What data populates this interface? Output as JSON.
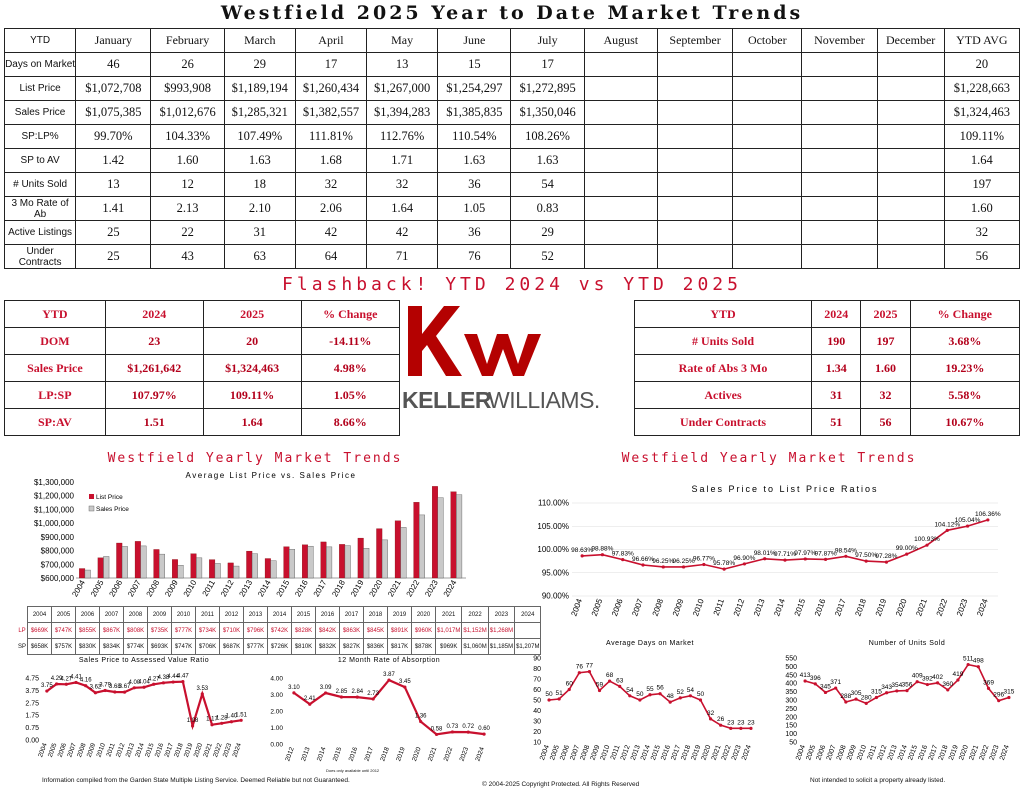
{
  "title": "Westfield 2025 Year to Date Market Trends",
  "main_table": {
    "headers": [
      "YTD",
      "January",
      "February",
      "March",
      "April",
      "May",
      "June",
      "July",
      "August",
      "September",
      "October",
      "November",
      "December",
      "YTD AVG"
    ],
    "rows": [
      [
        "Days on Market",
        "46",
        "26",
        "29",
        "17",
        "13",
        "15",
        "17",
        "",
        "",
        "",
        "",
        "",
        "20"
      ],
      [
        "List Price",
        "$1,072,708",
        "$993,908",
        "$1,189,194",
        "$1,260,434",
        "$1,267,000",
        "$1,254,297",
        "$1,272,895",
        "",
        "",
        "",
        "",
        "",
        "$1,228,663"
      ],
      [
        "Sales Price",
        "$1,075,385",
        "$1,012,676",
        "$1,285,321",
        "$1,382,557",
        "$1,394,283",
        "$1,385,835",
        "$1,350,046",
        "",
        "",
        "",
        "",
        "",
        "$1,324,463"
      ],
      [
        "SP:LP%",
        "99.70%",
        "104.33%",
        "107.49%",
        "111.81%",
        "112.76%",
        "110.54%",
        "108.26%",
        "",
        "",
        "",
        "",
        "",
        "109.11%"
      ],
      [
        "SP to AV",
        "1.42",
        "1.60",
        "1.63",
        "1.68",
        "1.71",
        "1.63",
        "1.63",
        "",
        "",
        "",
        "",
        "",
        "1.64"
      ],
      [
        "# Units Sold",
        "13",
        "12",
        "18",
        "32",
        "32",
        "36",
        "54",
        "",
        "",
        "",
        "",
        "",
        "197"
      ],
      [
        "3 Mo Rate of Ab",
        "1.41",
        "2.13",
        "2.10",
        "2.06",
        "1.64",
        "1.05",
        "0.83",
        "",
        "",
        "",
        "",
        "",
        "1.60"
      ],
      [
        "Active Listings",
        "25",
        "22",
        "31",
        "42",
        "42",
        "36",
        "29",
        "",
        "",
        "",
        "",
        "",
        "32"
      ],
      [
        "Under Contracts",
        "25",
        "43",
        "63",
        "64",
        "71",
        "76",
        "52",
        "",
        "",
        "",
        "",
        "",
        "56"
      ]
    ]
  },
  "flashback_title": "Flashback!  YTD 2024 vs YTD 2025",
  "flash_left": {
    "headers": [
      "YTD",
      "2024",
      "2025",
      "% Change"
    ],
    "rows": [
      [
        "DOM",
        "23",
        "20",
        "-14.11%"
      ],
      [
        "Sales Price",
        "$1,261,642",
        "$1,324,463",
        "4.98%"
      ],
      [
        "LP:SP",
        "107.97%",
        "109.11%",
        "1.05%"
      ],
      [
        "SP:AV",
        "1.51",
        "1.64",
        "8.66%"
      ]
    ]
  },
  "flash_right": {
    "headers": [
      "YTD",
      "2024",
      "2025",
      "% Change"
    ],
    "rows": [
      [
        "# Units Sold",
        "190",
        "197",
        "3.68%"
      ],
      [
        "Rate of Abs 3 Mo",
        "1.34",
        "1.60",
        "19.23%"
      ],
      [
        "Actives",
        "31",
        "32",
        "5.58%"
      ],
      [
        "Under Contracts",
        "51",
        "56",
        "10.67%"
      ]
    ]
  },
  "logo": {
    "mark": "kw",
    "wordmark_bold": "KELLER",
    "wordmark_light": "WILLIAMS.",
    "color": "#b40101"
  },
  "left_section_title": "Westfield Yearly Market Trends",
  "right_section_title": "Westfield Yearly Market Trends",
  "years": [
    "2004",
    "2005",
    "2006",
    "2007",
    "2008",
    "2009",
    "2010",
    "2011",
    "2012",
    "2013",
    "2014",
    "2015",
    "2016",
    "2017",
    "2018",
    "2019",
    "2020",
    "2021",
    "2022",
    "2023",
    "2024"
  ],
  "lp_row": [
    "$669K",
    "$747K",
    "$855K",
    "$867K",
    "$808K",
    "$735K",
    "$777K",
    "$734K",
    "$710K",
    "$796K",
    "$742K",
    "$828K",
    "$842K",
    "$863K",
    "$845K",
    "$891K",
    "$960K",
    "$1,017M",
    "$1,152M",
    "$1,268M",
    ""
  ],
  "sp_row": [
    "$658K",
    "$757K",
    "$830K",
    "$834K",
    "$774K",
    "$693K",
    "$747K",
    "$706K",
    "$687K",
    "$777K",
    "$726K",
    "$810K",
    "$832K",
    "$827K",
    "$836K",
    "$817K",
    "$878K",
    "$969K",
    "$1,060M",
    "$1,185M",
    "$1,207M"
  ],
  "lp_label": "LP",
  "sp_label": "SP",
  "note_only": "Does only available until 2012",
  "footer_left": "Information compiled from the Garden State Multiple Listing Service.  Deemed Reliable but not Guaranteed.",
  "footer_center": "© 2004-2025 Copyright Protected.  All Rights Reserved",
  "footer_right": "Not intended to solicit a property already listed.",
  "colors": {
    "red": "#c8102e",
    "gray": "#b9b9b9"
  },
  "chart_data": [
    {
      "type": "bar",
      "title": "Average List Price vs. Sales Price",
      "categories": [
        "2004",
        "2005",
        "2006",
        "2007",
        "2008",
        "2009",
        "2010",
        "2011",
        "2012",
        "2013",
        "2014",
        "2015",
        "2016",
        "2017",
        "2018",
        "2019",
        "2020",
        "2021",
        "2022",
        "2023",
        "2024"
      ],
      "series": [
        {
          "name": "List Price",
          "values": [
            669000,
            747000,
            855000,
            867000,
            808000,
            735000,
            777000,
            734000,
            710000,
            796000,
            742000,
            828000,
            842000,
            863000,
            845000,
            891000,
            960000,
            1017000,
            1152000,
            1268000,
            1228663
          ]
        },
        {
          "name": "Sales Price",
          "values": [
            658000,
            757000,
            830000,
            834000,
            774000,
            693000,
            747000,
            706000,
            687000,
            777000,
            726000,
            810000,
            832000,
            827000,
            836000,
            817000,
            878000,
            969000,
            1060000,
            1185000,
            1207000
          ]
        }
      ],
      "ylim": [
        600000,
        1300000
      ],
      "yticks": [
        "$600,000",
        "$700,000",
        "$800,000",
        "$900,000",
        "$1,000,000",
        "$1,100,000",
        "$1,200,000",
        "$1,300,000"
      ]
    },
    {
      "type": "line",
      "title": "Sales Price to List Price Ratios",
      "x": [
        "2004",
        "2005",
        "2006",
        "2007",
        "2008",
        "2009",
        "2010",
        "2011",
        "2012",
        "2013",
        "2014",
        "2015",
        "2016",
        "2017",
        "2018",
        "2019",
        "2020",
        "2021",
        "2022",
        "2023",
        "2024"
      ],
      "values": [
        98.63,
        98.88,
        97.83,
        96.66,
        96.25,
        96.25,
        96.77,
        95.78,
        96.9,
        98.01,
        97.71,
        97.97,
        97.87,
        98.54,
        97.5,
        97.28,
        99.0,
        100.93,
        104.12,
        105.04,
        106.36
      ],
      "labels": [
        "98.63%",
        "98.88%",
        "97.83%",
        "96.66%",
        "96.25%",
        "96.25%",
        "96.77%",
        "95.78%",
        "96.90%",
        "98.01%",
        "97.71%",
        "97.97%",
        "97.87%",
        "98.54%",
        "97.50%",
        "97.28%",
        "99.00%",
        "100.93%",
        "104.12%",
        "105.04%",
        "106.36%"
      ],
      "ylim": [
        90,
        110
      ],
      "yticks": [
        "90.00%",
        "95.00%",
        "100.00%",
        "105.00%",
        "110.00%"
      ]
    },
    {
      "type": "line",
      "title": "Sales Price to Assessed Value Ratio",
      "x": [
        "2004",
        "2005",
        "2006",
        "2007",
        "2008",
        "2009",
        "2010",
        "2011",
        "2012",
        "2013",
        "2014",
        "2015",
        "2016",
        "2017",
        "2018",
        "2019",
        "2020",
        "2021",
        "2022",
        "2023",
        "2024"
      ],
      "values": [
        3.75,
        4.29,
        4.27,
        4.41,
        4.16,
        3.62,
        3.79,
        3.68,
        3.67,
        4.0,
        4.04,
        4.27,
        4.38,
        4.44,
        4.47,
        1.08,
        3.53,
        1.17,
        1.28,
        1.4,
        1.51
      ],
      "labels": [
        "3.75",
        "4.29",
        "4.27",
        "4.41",
        "4.16",
        "3.62",
        "3.79",
        "3.68",
        "3.67",
        "4.00",
        "4.04",
        "4.27",
        "4.38",
        "4.44",
        "4.47",
        "1.08",
        "3.53",
        "1.17",
        "1.28",
        "1.40",
        "1.51"
      ],
      "ylim": [
        0,
        4.75
      ],
      "yticks": [
        "0.00",
        "0.75",
        "1.75",
        "2.75",
        "3.75",
        "4.75"
      ]
    },
    {
      "type": "line",
      "title": "12 Month Rate of Absorption",
      "x": [
        "2012",
        "2013",
        "2014",
        "2015",
        "2016",
        "2017",
        "2018",
        "2019",
        "2020",
        "2021",
        "2022",
        "2023",
        "2024"
      ],
      "values": [
        3.1,
        2.41,
        3.09,
        2.85,
        2.84,
        2.73,
        3.87,
        3.45,
        1.36,
        0.58,
        0.73,
        0.72,
        0.6
      ],
      "labels": [
        "3.10",
        "2.41",
        "3.09",
        "2.85",
        "2.84",
        "2.73",
        "3.87",
        "3.45",
        "1.36",
        "0.58",
        "0.73",
        "0.72",
        "0.60"
      ],
      "ylim": [
        0,
        4
      ],
      "yticks": [
        "0.00",
        "1.00",
        "2.00",
        "3.00",
        "4.00"
      ]
    },
    {
      "type": "line",
      "title": "Average Days on Market",
      "x": [
        "2004",
        "2005",
        "2006",
        "2007",
        "2008",
        "2009",
        "2010",
        "2011",
        "2012",
        "2013",
        "2014",
        "2015",
        "2016",
        "2017",
        "2018",
        "2019",
        "2020",
        "2021",
        "2022",
        "2023",
        "2024"
      ],
      "values": [
        50,
        51,
        60,
        76,
        77,
        59,
        68,
        63,
        54,
        50,
        55,
        56,
        48,
        52,
        54,
        50,
        32,
        26,
        23,
        23,
        23
      ],
      "labels": [
        "50",
        "51",
        "60",
        "76",
        "77",
        "59",
        "68",
        "63",
        "54",
        "50",
        "55",
        "56",
        "48",
        "52",
        "54",
        "50",
        "32",
        "26",
        "23",
        "23",
        "23"
      ],
      "ylim": [
        10,
        90
      ],
      "yticks": [
        "10",
        "20",
        "30",
        "40",
        "50",
        "60",
        "70",
        "80",
        "90"
      ]
    },
    {
      "type": "line",
      "title": "Number of Units Sold",
      "x": [
        "2004",
        "2005",
        "2006",
        "2007",
        "2008",
        "2009",
        "2010",
        "2011",
        "2012",
        "2013",
        "2014",
        "2015",
        "2016",
        "2017",
        "2018",
        "2019",
        "2020",
        "2021",
        "2022",
        "2023",
        "2024"
      ],
      "values": [
        413,
        396,
        345,
        371,
        288,
        305,
        280,
        315,
        343,
        354,
        356,
        409,
        392,
        402,
        360,
        419,
        511,
        498,
        369,
        296,
        315
      ],
      "labels": [
        "413",
        "396",
        "345",
        "371",
        "288",
        "305",
        "280",
        "315",
        "343",
        "354",
        "356",
        "409",
        "392",
        "402",
        "360",
        "419",
        "511",
        "498",
        "369",
        "296",
        "315"
      ],
      "ylim": [
        50,
        550
      ],
      "yticks": [
        "50",
        "100",
        "150",
        "200",
        "250",
        "300",
        "350",
        "400",
        "450",
        "500",
        "550"
      ]
    }
  ]
}
